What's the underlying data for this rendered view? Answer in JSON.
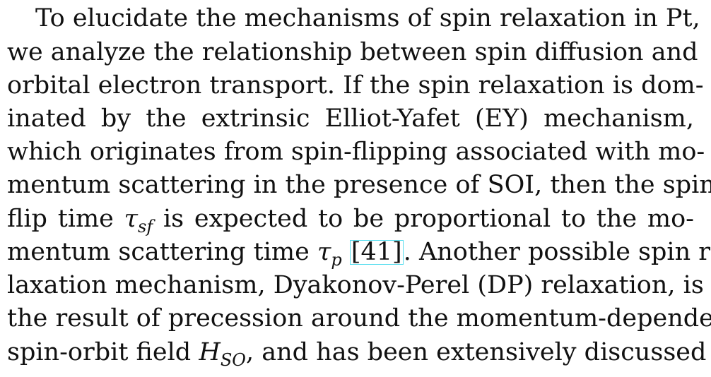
{
  "paragraph": {
    "line1": "To elucidate the mechanisms of spin relaxation in Pt,",
    "line2": "we analyze the relationship between spin diffusion and",
    "line3": "orbital electron transport. If the spin relaxation is dom-",
    "line4": "inated by the extrinsic Elliot-Yafet (EY) mechanism,",
    "line5": "which originates from spin-flipping associated with mo-",
    "line6": "mentum scattering in the presence of SOI, then the spin-",
    "line7_before": "flip time",
    "tau_symbol": "τ",
    "tau_sf_sub": "sf",
    "line7_after": "is expected to be proportional to the mo-",
    "line8_before": "mentum scattering time",
    "tau_p_sub": "p",
    "citation": "41",
    "line8_after": ". Another possible spin re-",
    "line9": "laxation mechanism, Dyakonov-Perel (DP) relaxation, is",
    "line10": "the result of precession around the momentum-dependent",
    "line11_before": "spin-orbit field",
    "h_symbol": "H",
    "h_so_sub": "SO",
    "line11_after": ", and has been extensively discussed"
  }
}
